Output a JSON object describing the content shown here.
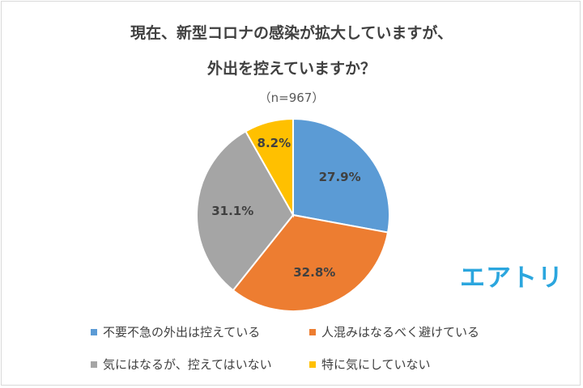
{
  "chart_data": {
    "type": "pie",
    "title_lines": [
      "現在、新型コロナの感染が拡大していますが、",
      "外出を控えていますか？"
    ],
    "subtitle": "（n=967）",
    "categories": [
      "不要不急の外出は控えている",
      "人混みはなるべく避けている",
      "気にはなるが、控えてはいない",
      "特に気にしていない"
    ],
    "values": [
      27.9,
      32.8,
      31.1,
      8.2
    ],
    "value_labels": [
      "27.9%",
      "32.8%",
      "31.1%",
      "8.2%"
    ],
    "colors": [
      "#5b9bd5",
      "#ed7d31",
      "#a5a5a5",
      "#ffc000"
    ],
    "legend_position": "bottom"
  },
  "logo": {
    "text": "エアトリ",
    "color": "#2ba6de"
  }
}
